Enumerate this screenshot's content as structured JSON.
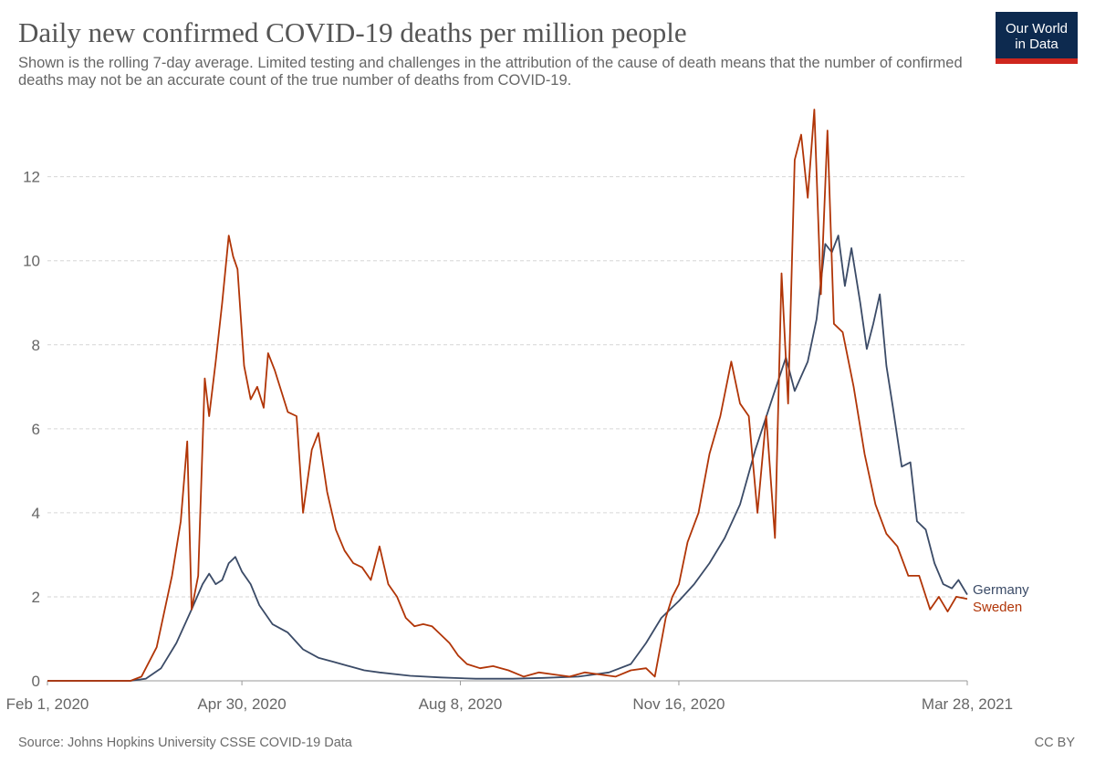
{
  "header": {
    "title": "Daily new confirmed COVID-19 deaths per million people",
    "subtitle": "Shown is the rolling 7-day average. Limited testing and challenges in the attribution of the cause of death means that the number of confirmed deaths may not be an accurate count of the true number of deaths from COVID-19.",
    "logo_line1": "Our World",
    "logo_line2": "in Data"
  },
  "footer": {
    "source": "Source: Johns Hopkins University CSSE COVID-19 Data",
    "license": "CC BY"
  },
  "colors": {
    "germany": "#3b4b67",
    "sweden": "#b13507",
    "logo_bg": "#0d2a4f",
    "logo_accent": "#ce261e",
    "grid": "#d6d6d6"
  },
  "chart_data": {
    "type": "line",
    "title": "Daily new confirmed COVID-19 deaths per million people",
    "xlabel": "",
    "ylabel": "",
    "x_type": "date",
    "x_range": [
      "2020-02-01",
      "2021-03-28"
    ],
    "x_ticks": [
      {
        "date": "2020-02-01",
        "label": "Feb 1, 2020"
      },
      {
        "date": "2020-04-30",
        "label": "Apr 30, 2020"
      },
      {
        "date": "2020-08-08",
        "label": "Aug 8, 2020"
      },
      {
        "date": "2020-11-16",
        "label": "Nov 16, 2020"
      },
      {
        "date": "2021-03-28",
        "label": "Mar 28, 2021"
      }
    ],
    "ylim": [
      0,
      13.6
    ],
    "y_ticks": [
      0,
      2,
      4,
      6,
      8,
      10,
      12
    ],
    "grid": "horizontal dashed",
    "legend": "labels at line ends (right)",
    "series": [
      {
        "name": "Germany",
        "points": [
          [
            "2020-02-01",
            0
          ],
          [
            "2020-03-10",
            0
          ],
          [
            "2020-03-17",
            0.05
          ],
          [
            "2020-03-24",
            0.3
          ],
          [
            "2020-03-31",
            0.9
          ],
          [
            "2020-04-07",
            1.7
          ],
          [
            "2020-04-12",
            2.3
          ],
          [
            "2020-04-15",
            2.55
          ],
          [
            "2020-04-18",
            2.3
          ],
          [
            "2020-04-21",
            2.4
          ],
          [
            "2020-04-24",
            2.8
          ],
          [
            "2020-04-27",
            2.95
          ],
          [
            "2020-04-30",
            2.6
          ],
          [
            "2020-05-04",
            2.3
          ],
          [
            "2020-05-08",
            1.8
          ],
          [
            "2020-05-14",
            1.35
          ],
          [
            "2020-05-21",
            1.15
          ],
          [
            "2020-05-28",
            0.75
          ],
          [
            "2020-06-04",
            0.55
          ],
          [
            "2020-06-11",
            0.45
          ],
          [
            "2020-06-18",
            0.35
          ],
          [
            "2020-06-25",
            0.25
          ],
          [
            "2020-07-02",
            0.2
          ],
          [
            "2020-07-16",
            0.12
          ],
          [
            "2020-07-30",
            0.08
          ],
          [
            "2020-08-15",
            0.05
          ],
          [
            "2020-09-01",
            0.05
          ],
          [
            "2020-09-15",
            0.07
          ],
          [
            "2020-10-01",
            0.1
          ],
          [
            "2020-10-15",
            0.2
          ],
          [
            "2020-10-25",
            0.4
          ],
          [
            "2020-11-01",
            0.9
          ],
          [
            "2020-11-08",
            1.5
          ],
          [
            "2020-11-16",
            1.9
          ],
          [
            "2020-11-23",
            2.3
          ],
          [
            "2020-11-30",
            2.8
          ],
          [
            "2020-12-07",
            3.4
          ],
          [
            "2020-12-14",
            4.2
          ],
          [
            "2020-12-21",
            5.5
          ],
          [
            "2020-12-28",
            6.6
          ],
          [
            "2021-01-04",
            7.7
          ],
          [
            "2021-01-08",
            6.9
          ],
          [
            "2021-01-14",
            7.6
          ],
          [
            "2021-01-18",
            8.6
          ],
          [
            "2021-01-22",
            10.4
          ],
          [
            "2021-01-25",
            10.2
          ],
          [
            "2021-01-28",
            10.6
          ],
          [
            "2021-01-31",
            9.4
          ],
          [
            "2021-02-03",
            10.3
          ],
          [
            "2021-02-07",
            9.0
          ],
          [
            "2021-02-10",
            7.9
          ],
          [
            "2021-02-13",
            8.5
          ],
          [
            "2021-02-16",
            9.2
          ],
          [
            "2021-02-19",
            7.5
          ],
          [
            "2021-02-22",
            6.5
          ],
          [
            "2021-02-26",
            5.1
          ],
          [
            "2021-03-02",
            5.2
          ],
          [
            "2021-03-05",
            3.8
          ],
          [
            "2021-03-09",
            3.6
          ],
          [
            "2021-03-13",
            2.8
          ],
          [
            "2021-03-17",
            2.3
          ],
          [
            "2021-03-21",
            2.2
          ],
          [
            "2021-03-24",
            2.4
          ],
          [
            "2021-03-28",
            2.05
          ]
        ]
      },
      {
        "name": "Sweden",
        "points": [
          [
            "2020-02-01",
            0
          ],
          [
            "2020-03-10",
            0
          ],
          [
            "2020-03-15",
            0.1
          ],
          [
            "2020-03-22",
            0.8
          ],
          [
            "2020-03-29",
            2.5
          ],
          [
            "2020-04-02",
            3.8
          ],
          [
            "2020-04-05",
            5.7
          ],
          [
            "2020-04-07",
            1.7
          ],
          [
            "2020-04-10",
            2.5
          ],
          [
            "2020-04-13",
            7.2
          ],
          [
            "2020-04-15",
            6.3
          ],
          [
            "2020-04-18",
            7.6
          ],
          [
            "2020-04-21",
            9.0
          ],
          [
            "2020-04-24",
            10.6
          ],
          [
            "2020-04-26",
            10.1
          ],
          [
            "2020-04-28",
            9.8
          ],
          [
            "2020-05-01",
            7.5
          ],
          [
            "2020-05-04",
            6.7
          ],
          [
            "2020-05-07",
            7.0
          ],
          [
            "2020-05-10",
            6.5
          ],
          [
            "2020-05-12",
            7.8
          ],
          [
            "2020-05-15",
            7.4
          ],
          [
            "2020-05-18",
            6.9
          ],
          [
            "2020-05-21",
            6.4
          ],
          [
            "2020-05-25",
            6.3
          ],
          [
            "2020-05-28",
            4.0
          ],
          [
            "2020-06-01",
            5.5
          ],
          [
            "2020-06-04",
            5.9
          ],
          [
            "2020-06-08",
            4.5
          ],
          [
            "2020-06-12",
            3.6
          ],
          [
            "2020-06-16",
            3.1
          ],
          [
            "2020-06-20",
            2.8
          ],
          [
            "2020-06-24",
            2.7
          ],
          [
            "2020-06-28",
            2.4
          ],
          [
            "2020-07-02",
            3.2
          ],
          [
            "2020-07-06",
            2.3
          ],
          [
            "2020-07-10",
            2.0
          ],
          [
            "2020-07-14",
            1.5
          ],
          [
            "2020-07-18",
            1.3
          ],
          [
            "2020-07-22",
            1.35
          ],
          [
            "2020-07-26",
            1.3
          ],
          [
            "2020-07-30",
            1.1
          ],
          [
            "2020-08-03",
            0.9
          ],
          [
            "2020-08-07",
            0.6
          ],
          [
            "2020-08-11",
            0.4
          ],
          [
            "2020-08-17",
            0.3
          ],
          [
            "2020-08-23",
            0.35
          ],
          [
            "2020-08-30",
            0.25
          ],
          [
            "2020-09-06",
            0.1
          ],
          [
            "2020-09-13",
            0.2
          ],
          [
            "2020-09-20",
            0.15
          ],
          [
            "2020-09-27",
            0.1
          ],
          [
            "2020-10-04",
            0.2
          ],
          [
            "2020-10-11",
            0.15
          ],
          [
            "2020-10-18",
            0.1
          ],
          [
            "2020-10-25",
            0.25
          ],
          [
            "2020-11-01",
            0.3
          ],
          [
            "2020-11-05",
            0.1
          ],
          [
            "2020-11-10",
            1.5
          ],
          [
            "2020-11-13",
            2.0
          ],
          [
            "2020-11-16",
            2.3
          ],
          [
            "2020-11-20",
            3.3
          ],
          [
            "2020-11-25",
            4.0
          ],
          [
            "2020-11-30",
            5.4
          ],
          [
            "2020-12-05",
            6.3
          ],
          [
            "2020-12-10",
            7.6
          ],
          [
            "2020-12-14",
            6.6
          ],
          [
            "2020-12-18",
            6.3
          ],
          [
            "2020-12-22",
            4.0
          ],
          [
            "2020-12-26",
            6.3
          ],
          [
            "2020-12-30",
            3.4
          ],
          [
            "2021-01-02",
            9.7
          ],
          [
            "2021-01-05",
            6.6
          ],
          [
            "2021-01-08",
            12.4
          ],
          [
            "2021-01-11",
            13.0
          ],
          [
            "2021-01-14",
            11.5
          ],
          [
            "2021-01-17",
            13.6
          ],
          [
            "2021-01-20",
            9.2
          ],
          [
            "2021-01-23",
            13.1
          ],
          [
            "2021-01-26",
            8.5
          ],
          [
            "2021-01-30",
            8.3
          ],
          [
            "2021-02-04",
            7.0
          ],
          [
            "2021-02-09",
            5.4
          ],
          [
            "2021-02-14",
            4.2
          ],
          [
            "2021-02-19",
            3.5
          ],
          [
            "2021-02-24",
            3.2
          ],
          [
            "2021-03-01",
            2.5
          ],
          [
            "2021-03-06",
            2.5
          ],
          [
            "2021-03-11",
            1.7
          ],
          [
            "2021-03-15",
            2.0
          ],
          [
            "2021-03-19",
            1.65
          ],
          [
            "2021-03-23",
            2.0
          ],
          [
            "2021-03-28",
            1.95
          ]
        ]
      }
    ]
  }
}
